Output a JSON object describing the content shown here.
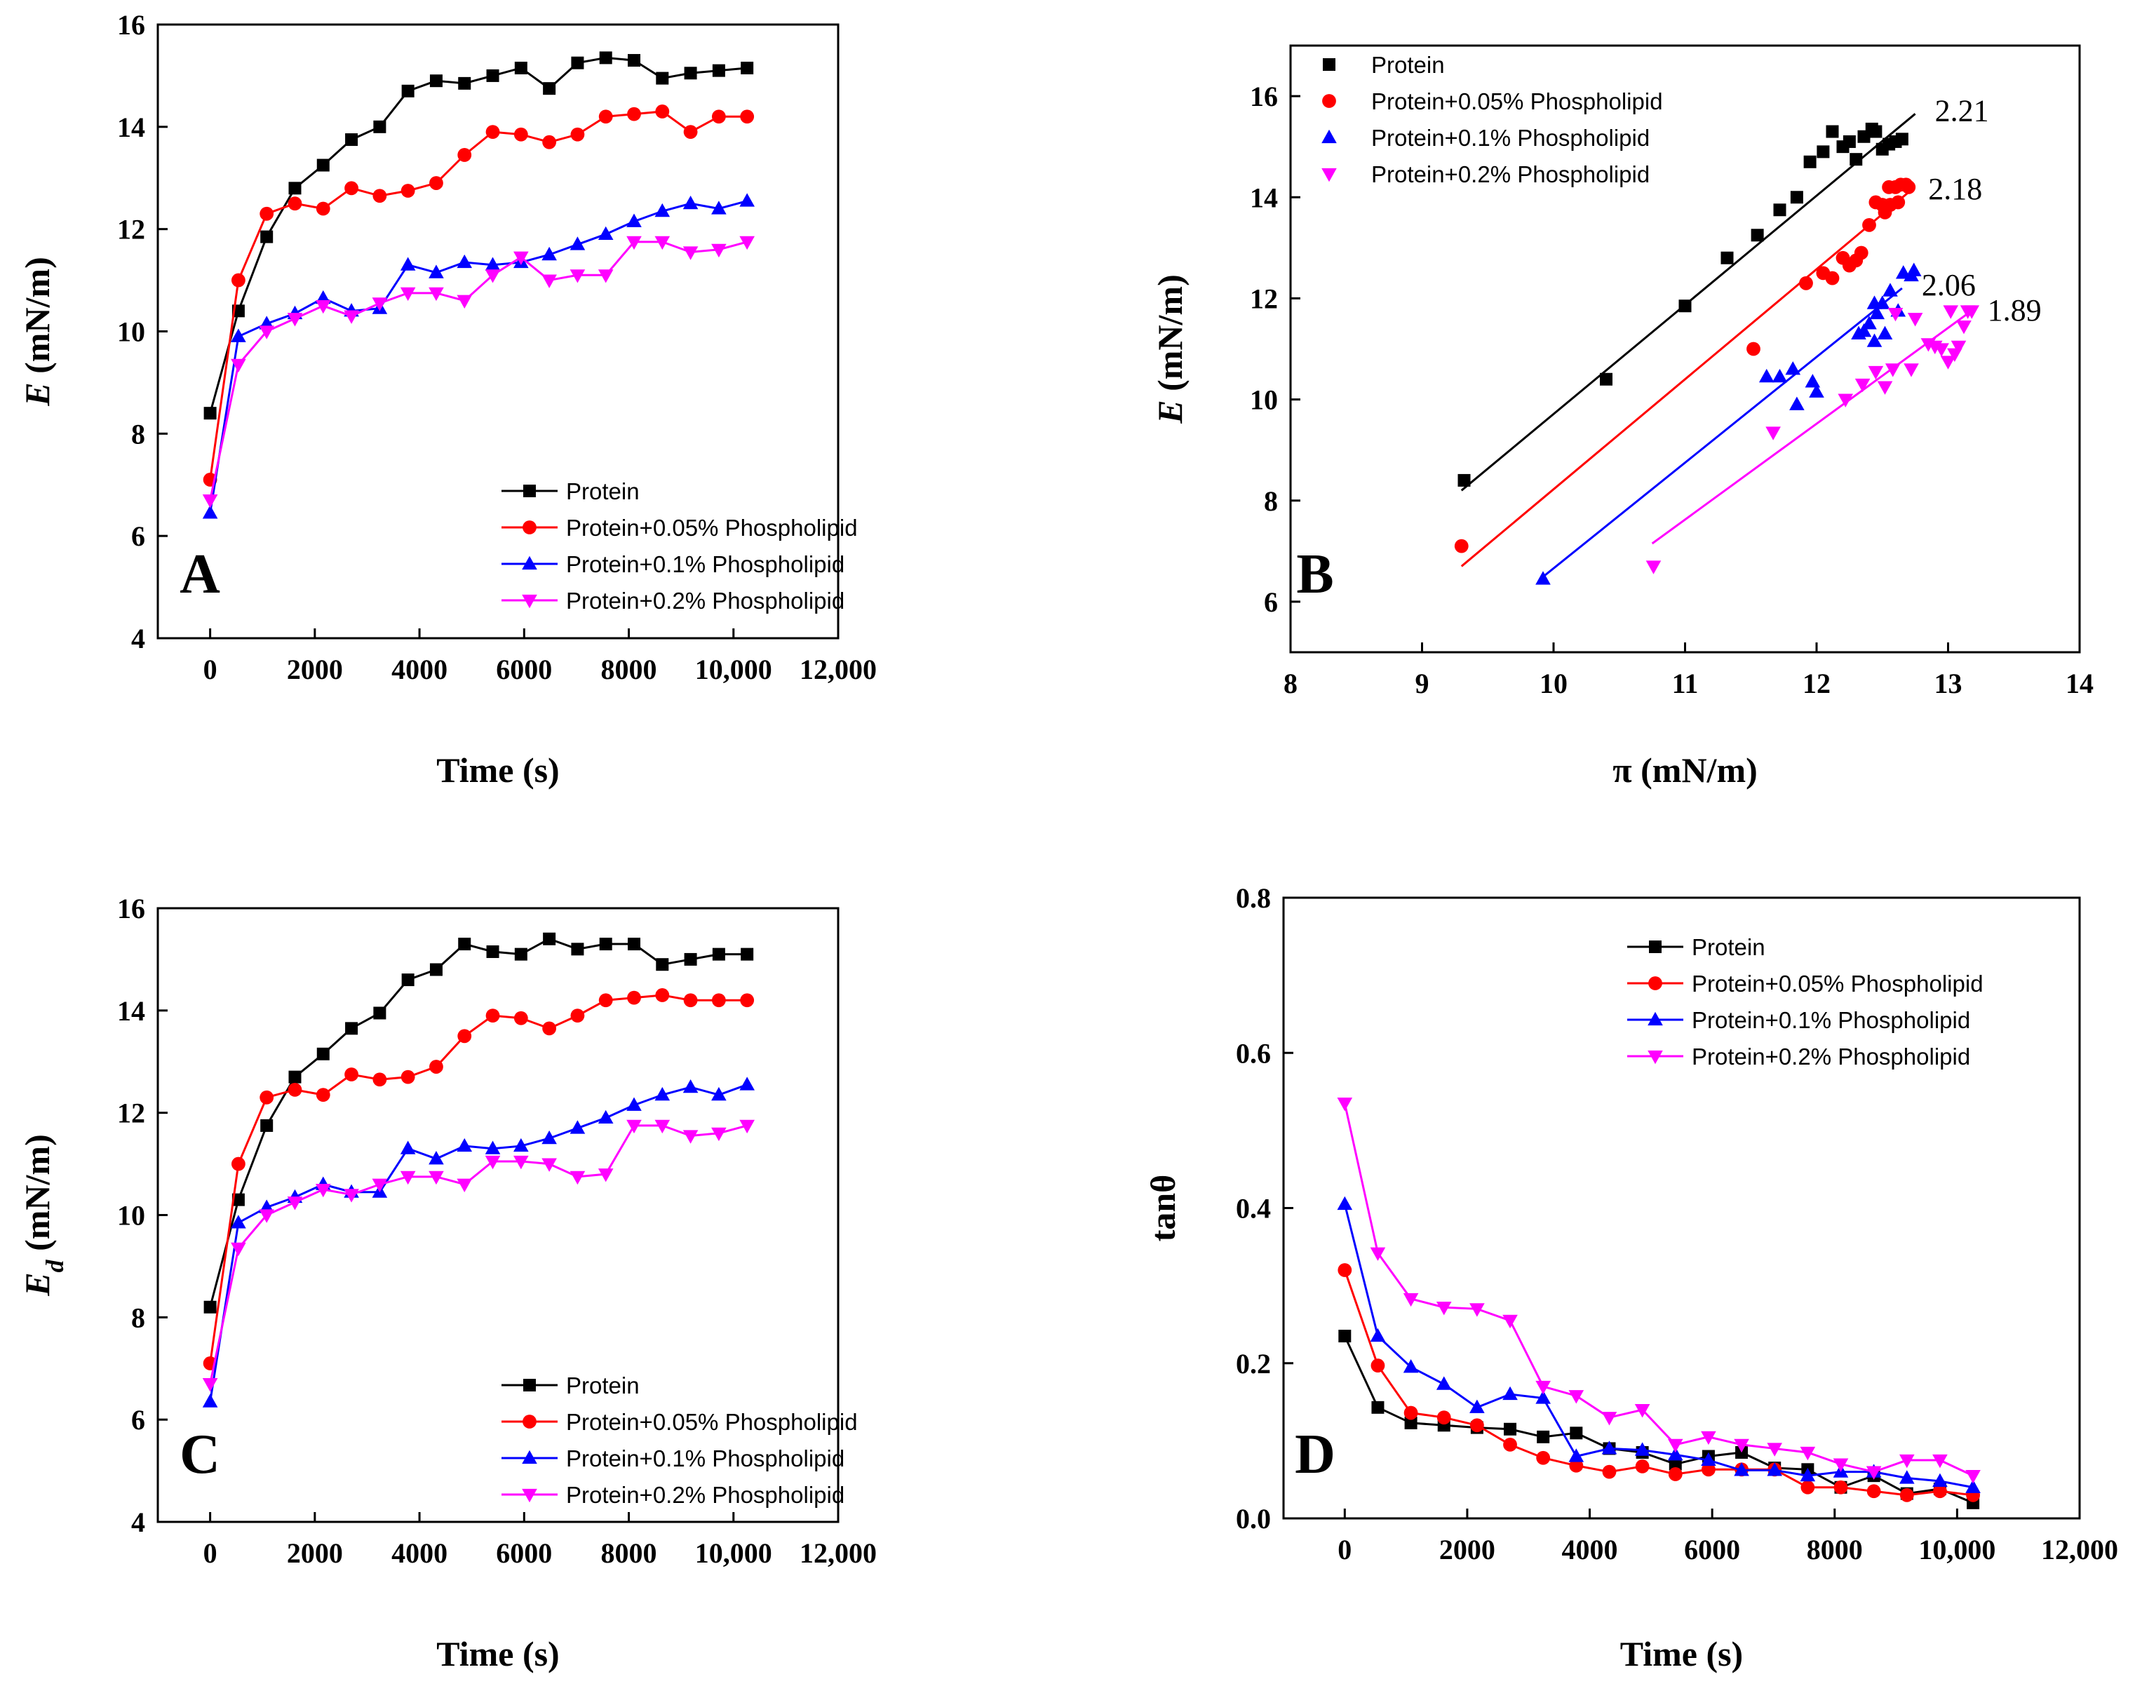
{
  "series_names": [
    "Protein",
    "Protein+0.05% Phospholipid",
    "Protein+0.1% Phospholipid",
    "Protein+0.2% Phospholipid"
  ],
  "series_colors": [
    "#000000",
    "#ff0000",
    "#0000ff",
    "#ff00ff"
  ],
  "series_markers": [
    "square",
    "circle",
    "triangle-up",
    "triangle-down"
  ],
  "chart_data": [
    {
      "panel": "A",
      "type": "line",
      "xlabel": "Time (s)",
      "ylabel_main": "E",
      "ylabel_sub": "",
      "ylabel_unit": " (mN/m)",
      "xlim": [
        -1000,
        12000
      ],
      "ylim": [
        4,
        16
      ],
      "xticks": [
        0,
        2000,
        4000,
        6000,
        8000,
        10000,
        12000
      ],
      "xtick_labels": [
        "0",
        "2000",
        "4000",
        "6000",
        "8000",
        "10,000",
        "12,000"
      ],
      "yticks": [
        4,
        6,
        8,
        10,
        12,
        14,
        16
      ],
      "ytick_labels": [
        "4",
        "6",
        "8",
        "10",
        "12",
        "14",
        "16"
      ],
      "legend_position": "bottom-right",
      "x": [
        0,
        540,
        1080,
        1620,
        2160,
        2700,
        3240,
        3780,
        4320,
        4860,
        5400,
        5940,
        6480,
        7020,
        7560,
        8100,
        8640,
        9180,
        9720,
        10260
      ],
      "series": [
        {
          "name": "Protein",
          "values": [
            8.4,
            10.4,
            11.85,
            12.8,
            13.25,
            13.75,
            14.0,
            14.7,
            14.9,
            14.85,
            15.0,
            15.15,
            14.75,
            15.25,
            15.35,
            15.3,
            14.95,
            15.05,
            15.1,
            15.15
          ]
        },
        {
          "name": "Protein+0.05% Phospholipid",
          "values": [
            7.1,
            11.0,
            12.3,
            12.5,
            12.4,
            12.8,
            12.65,
            12.75,
            12.9,
            13.45,
            13.9,
            13.85,
            13.7,
            13.85,
            14.2,
            14.25,
            14.3,
            13.9,
            14.2,
            14.2
          ]
        },
        {
          "name": "Protein+0.1% Phospholipid",
          "values": [
            6.45,
            9.9,
            10.15,
            10.35,
            10.65,
            10.4,
            10.45,
            11.3,
            11.15,
            11.35,
            11.3,
            11.35,
            11.5,
            11.7,
            11.9,
            12.15,
            12.35,
            12.5,
            12.4,
            12.55
          ]
        },
        {
          "name": "Protein+0.2% Phospholipid",
          "values": [
            6.7,
            9.35,
            10.0,
            10.25,
            10.5,
            10.3,
            10.55,
            10.75,
            10.75,
            10.6,
            11.1,
            11.45,
            11.0,
            11.1,
            11.1,
            11.75,
            11.75,
            11.55,
            11.6,
            11.75
          ]
        }
      ]
    },
    {
      "panel": "B",
      "type": "scatter",
      "xlabel": "π (mN/m)",
      "ylabel_main": "E",
      "ylabel_sub": "",
      "ylabel_unit": " (mN/m)",
      "xlim": [
        8,
        14
      ],
      "ylim": [
        5,
        17
      ],
      "xticks": [
        8,
        9,
        10,
        11,
        12,
        13,
        14
      ],
      "xtick_labels": [
        "8",
        "9",
        "10",
        "11",
        "12",
        "13",
        "14"
      ],
      "yticks": [
        6,
        8,
        10,
        12,
        14,
        16
      ],
      "ytick_labels": [
        "6",
        "8",
        "10",
        "12",
        "14",
        "16"
      ],
      "legend_position": "top-left",
      "series": [
        {
          "name": "Protein",
          "slope_label": "2.21",
          "fit_x": [
            9.3,
            12.75
          ],
          "fit_y": [
            8.2,
            15.65
          ],
          "points": [
            [
              9.32,
              8.4
            ],
            [
              10.4,
              10.4
            ],
            [
              11.0,
              11.85
            ],
            [
              11.32,
              12.8
            ],
            [
              11.55,
              13.25
            ],
            [
              11.72,
              13.75
            ],
            [
              11.85,
              14.0
            ],
            [
              11.95,
              14.7
            ],
            [
              12.05,
              14.9
            ],
            [
              12.12,
              15.3
            ],
            [
              12.2,
              15.0
            ],
            [
              12.25,
              15.1
            ],
            [
              12.3,
              14.75
            ],
            [
              12.36,
              15.2
            ],
            [
              12.42,
              15.35
            ],
            [
              12.45,
              15.3
            ],
            [
              12.5,
              14.95
            ],
            [
              12.55,
              15.05
            ],
            [
              12.6,
              15.1
            ],
            [
              12.65,
              15.15
            ]
          ]
        },
        {
          "name": "Protein+0.05% Phospholipid",
          "slope_label": "2.18",
          "fit_x": [
            9.3,
            12.7
          ],
          "fit_y": [
            6.7,
            14.1
          ],
          "points": [
            [
              9.3,
              7.1
            ],
            [
              11.52,
              11.0
            ],
            [
              11.92,
              12.3
            ],
            [
              12.05,
              12.5
            ],
            [
              12.12,
              12.4
            ],
            [
              12.2,
              12.8
            ],
            [
              12.25,
              12.65
            ],
            [
              12.3,
              12.75
            ],
            [
              12.34,
              12.9
            ],
            [
              12.4,
              13.45
            ],
            [
              12.45,
              13.9
            ],
            [
              12.5,
              13.85
            ],
            [
              12.52,
              13.7
            ],
            [
              12.56,
              13.85
            ],
            [
              12.6,
              14.2
            ],
            [
              12.64,
              14.25
            ],
            [
              12.68,
              14.25
            ],
            [
              12.62,
              13.9
            ],
            [
              12.7,
              14.2
            ],
            [
              12.55,
              14.2
            ]
          ]
        },
        {
          "name": "Protein+0.1% Phospholipid",
          "slope_label": "2.06",
          "fit_x": [
            9.9,
            12.65
          ],
          "fit_y": [
            6.45,
            12.2
          ],
          "points": [
            [
              9.92,
              6.45
            ],
            [
              11.62,
              10.45
            ],
            [
              11.72,
              10.45
            ],
            [
              11.82,
              10.6
            ],
            [
              11.85,
              9.9
            ],
            [
              11.97,
              10.35
            ],
            [
              12.0,
              10.15
            ],
            [
              12.32,
              11.3
            ],
            [
              12.36,
              11.35
            ],
            [
              12.4,
              11.5
            ],
            [
              12.44,
              11.15
            ],
            [
              12.46,
              11.7
            ],
            [
              12.5,
              11.9
            ],
            [
              12.52,
              11.3
            ],
            [
              12.56,
              12.15
            ],
            [
              12.62,
              11.75
            ],
            [
              12.66,
              12.5
            ],
            [
              12.72,
              12.45
            ],
            [
              12.74,
              12.55
            ],
            [
              12.44,
              11.9
            ]
          ]
        },
        {
          "name": "Protein+0.2% Phospholipid",
          "slope_label": "1.89",
          "fit_x": [
            10.75,
            13.15
          ],
          "fit_y": [
            7.15,
            11.7
          ],
          "points": [
            [
              10.76,
              6.7
            ],
            [
              11.67,
              9.35
            ],
            [
              12.22,
              10.0
            ],
            [
              12.35,
              10.3
            ],
            [
              12.45,
              10.55
            ],
            [
              12.52,
              10.25
            ],
            [
              12.58,
              10.6
            ],
            [
              12.72,
              10.6
            ],
            [
              12.85,
              11.1
            ],
            [
              12.9,
              11.05
            ],
            [
              12.95,
              11.0
            ],
            [
              13.0,
              10.75
            ],
            [
              13.02,
              11.75
            ],
            [
              13.05,
              10.9
            ],
            [
              13.08,
              11.05
            ],
            [
              13.12,
              11.45
            ],
            [
              13.15,
              11.75
            ],
            [
              13.18,
              11.75
            ],
            [
              12.6,
              11.7
            ],
            [
              12.75,
              11.6
            ]
          ]
        }
      ]
    },
    {
      "panel": "C",
      "type": "line",
      "xlabel": "Time (s)",
      "ylabel_main": "E",
      "ylabel_sub": "d",
      "ylabel_unit": " (mN/m)",
      "xlim": [
        -1000,
        12000
      ],
      "ylim": [
        4,
        16
      ],
      "xticks": [
        0,
        2000,
        4000,
        6000,
        8000,
        10000,
        12000
      ],
      "xtick_labels": [
        "0",
        "2000",
        "4000",
        "6000",
        "8000",
        "10,000",
        "12,000"
      ],
      "yticks": [
        4,
        6,
        8,
        10,
        12,
        14,
        16
      ],
      "ytick_labels": [
        "4",
        "6",
        "8",
        "10",
        "12",
        "14",
        "16"
      ],
      "legend_position": "bottom-right",
      "x": [
        0,
        540,
        1080,
        1620,
        2160,
        2700,
        3240,
        3780,
        4320,
        4860,
        5400,
        5940,
        6480,
        7020,
        7560,
        8100,
        8640,
        9180,
        9720,
        10260
      ],
      "series": [
        {
          "name": "Protein",
          "values": [
            8.2,
            10.3,
            11.75,
            12.7,
            13.15,
            13.65,
            13.95,
            14.6,
            14.8,
            15.3,
            15.15,
            15.1,
            15.4,
            15.2,
            15.3,
            15.3,
            14.9,
            15.0,
            15.1,
            15.1
          ]
        },
        {
          "name": "Protein+0.05% Phospholipid",
          "values": [
            7.1,
            11.0,
            12.3,
            12.45,
            12.35,
            12.75,
            12.65,
            12.7,
            12.9,
            13.5,
            13.9,
            13.85,
            13.65,
            13.9,
            14.2,
            14.25,
            14.3,
            14.2,
            14.2,
            14.2
          ]
        },
        {
          "name": "Protein+0.1% Phospholipid",
          "values": [
            6.35,
            9.85,
            10.15,
            10.35,
            10.6,
            10.45,
            10.45,
            11.3,
            11.1,
            11.35,
            11.3,
            11.35,
            11.5,
            11.7,
            11.9,
            12.15,
            12.35,
            12.5,
            12.35,
            12.55
          ]
        },
        {
          "name": "Protein+0.2% Phospholipid",
          "values": [
            6.7,
            9.35,
            10.0,
            10.25,
            10.5,
            10.4,
            10.6,
            10.75,
            10.75,
            10.6,
            11.05,
            11.05,
            11.0,
            10.75,
            10.8,
            11.75,
            11.75,
            11.55,
            11.6,
            11.75
          ]
        }
      ]
    },
    {
      "panel": "D",
      "type": "line",
      "xlabel": "Time (s)",
      "ylabel_main": "tanθ",
      "ylabel_sub": "",
      "ylabel_unit": "",
      "xlim": [
        -1000,
        12000
      ],
      "ylim": [
        0,
        0.8
      ],
      "xticks": [
        0,
        2000,
        4000,
        6000,
        8000,
        10000,
        12000
      ],
      "xtick_labels": [
        "0",
        "2000",
        "4000",
        "6000",
        "8000",
        "10,000",
        "12,000"
      ],
      "yticks": [
        0,
        0.2,
        0.4,
        0.6,
        0.8
      ],
      "ytick_labels": [
        "0.0",
        "0.2",
        "0.4",
        "0.6",
        "0.8"
      ],
      "legend_position": "top-right",
      "x": [
        0,
        540,
        1080,
        1620,
        2160,
        2700,
        3240,
        3780,
        4320,
        4860,
        5400,
        5940,
        6480,
        7020,
        7560,
        8100,
        8640,
        9180,
        9720,
        10260
      ],
      "series": [
        {
          "name": "Protein",
          "values": [
            0.235,
            0.143,
            0.123,
            0.12,
            0.117,
            0.115,
            0.105,
            0.11,
            0.09,
            0.085,
            0.07,
            0.08,
            0.085,
            0.065,
            0.063,
            0.04,
            0.055,
            0.032,
            0.038,
            0.02
          ]
        },
        {
          "name": "Protein+0.05% Phospholipid",
          "values": [
            0.32,
            0.197,
            0.136,
            0.13,
            0.12,
            0.095,
            0.078,
            0.068,
            0.06,
            0.067,
            0.057,
            0.063,
            0.063,
            0.063,
            0.04,
            0.04,
            0.035,
            0.03,
            0.035,
            0.03
          ]
        },
        {
          "name": "Protein+0.1% Phospholipid",
          "values": [
            0.405,
            0.235,
            0.195,
            0.173,
            0.143,
            0.16,
            0.155,
            0.08,
            0.09,
            0.088,
            0.082,
            0.075,
            0.062,
            0.062,
            0.055,
            0.06,
            0.06,
            0.052,
            0.048,
            0.04
          ]
        },
        {
          "name": "Protein+0.2% Phospholipid",
          "values": [
            0.535,
            0.342,
            0.283,
            0.272,
            0.27,
            0.255,
            0.17,
            0.158,
            0.13,
            0.14,
            0.095,
            0.105,
            0.095,
            0.09,
            0.085,
            0.07,
            0.06,
            0.075,
            0.075,
            0.055
          ]
        }
      ]
    }
  ]
}
